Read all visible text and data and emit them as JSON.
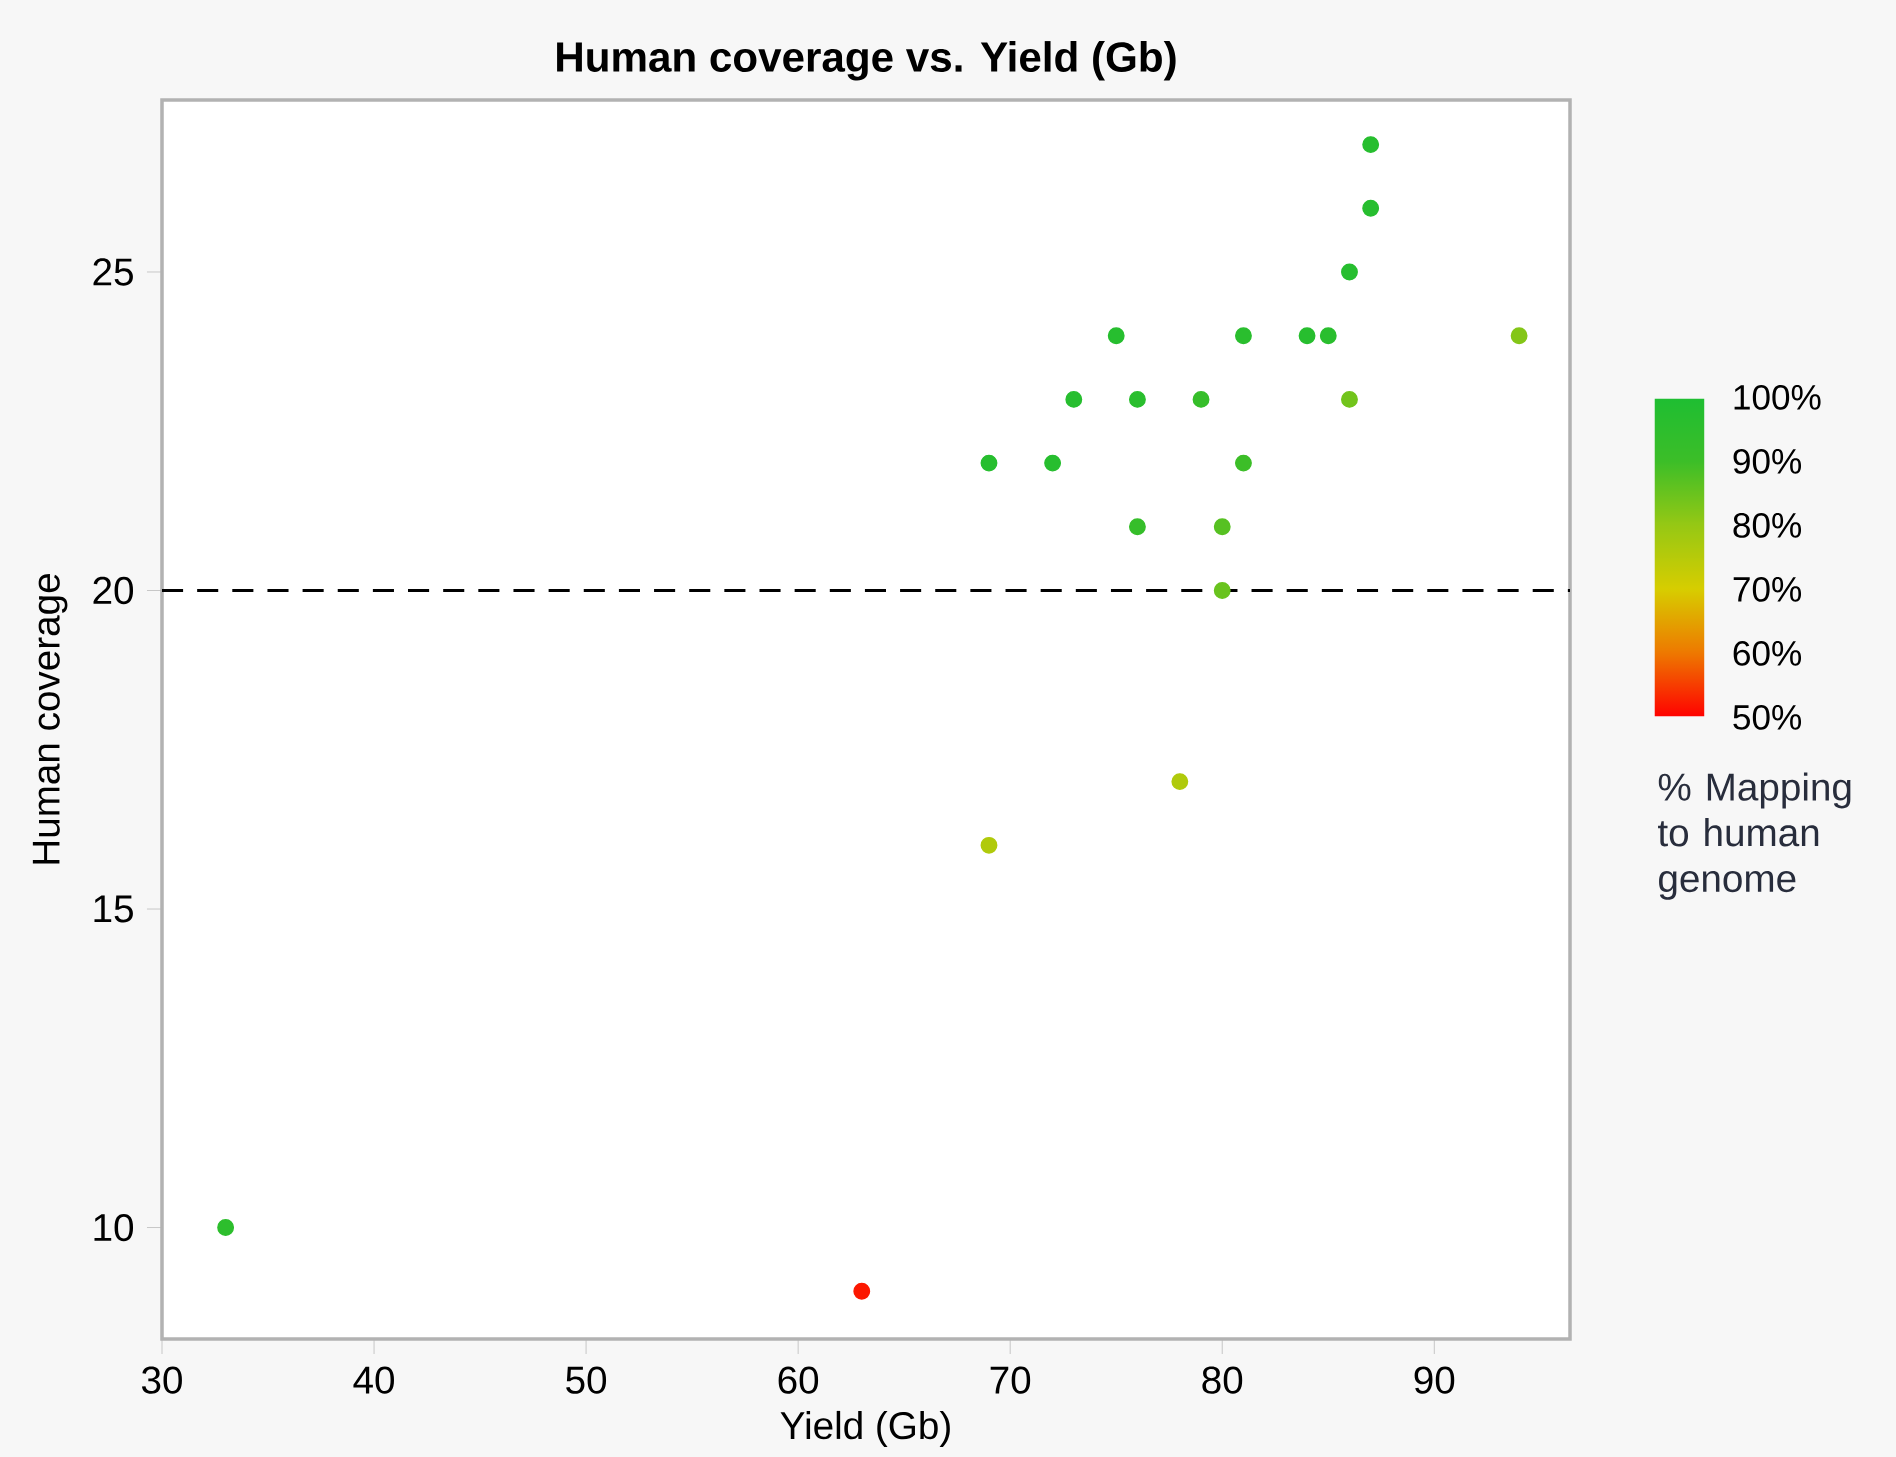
{
  "chart_data": {
    "type": "scatter",
    "title": "Human coverage vs. Yield (Gb)",
    "xlabel": "Yield (Gb)",
    "ylabel": "Human coverage",
    "clabel": "% Mapping to human genome",
    "x": [
      33,
      63,
      69,
      69,
      72,
      73,
      75,
      76,
      76,
      78,
      79,
      80,
      80,
      81,
      81,
      84,
      85,
      86,
      86,
      87,
      87,
      94
    ],
    "values": [
      10,
      9,
      22,
      16,
      22,
      23,
      24,
      23,
      21,
      17,
      23,
      21,
      20,
      24,
      22,
      24,
      24,
      25,
      23,
      26,
      27,
      24
    ],
    "cvalues": [
      95,
      52,
      97,
      76,
      97,
      97,
      97,
      96,
      92,
      76,
      92,
      87,
      85,
      96,
      90,
      97,
      96,
      97,
      84,
      97,
      97,
      82
    ],
    "clim": [
      50,
      100
    ],
    "cticks": [
      {
        "value": 50,
        "label": "50%"
      },
      {
        "value": 60,
        "label": "60%"
      },
      {
        "value": 70,
        "label": "70%"
      },
      {
        "value": 80,
        "label": "80%"
      },
      {
        "value": 90,
        "label": "90%"
      },
      {
        "value": 100,
        "label": "100%"
      }
    ],
    "xlim": [
      30,
      96.4
    ],
    "ylim": [
      8.25,
      27.7
    ],
    "xticks": [
      30,
      40,
      50,
      60,
      70,
      80,
      90
    ],
    "yticks": [
      10,
      15,
      20,
      25
    ],
    "ref_lines": [
      {
        "axis": "y",
        "value": 20,
        "color": "#000000",
        "line_style": "dashed"
      }
    ],
    "marker": "circle",
    "grid": false
  }
}
